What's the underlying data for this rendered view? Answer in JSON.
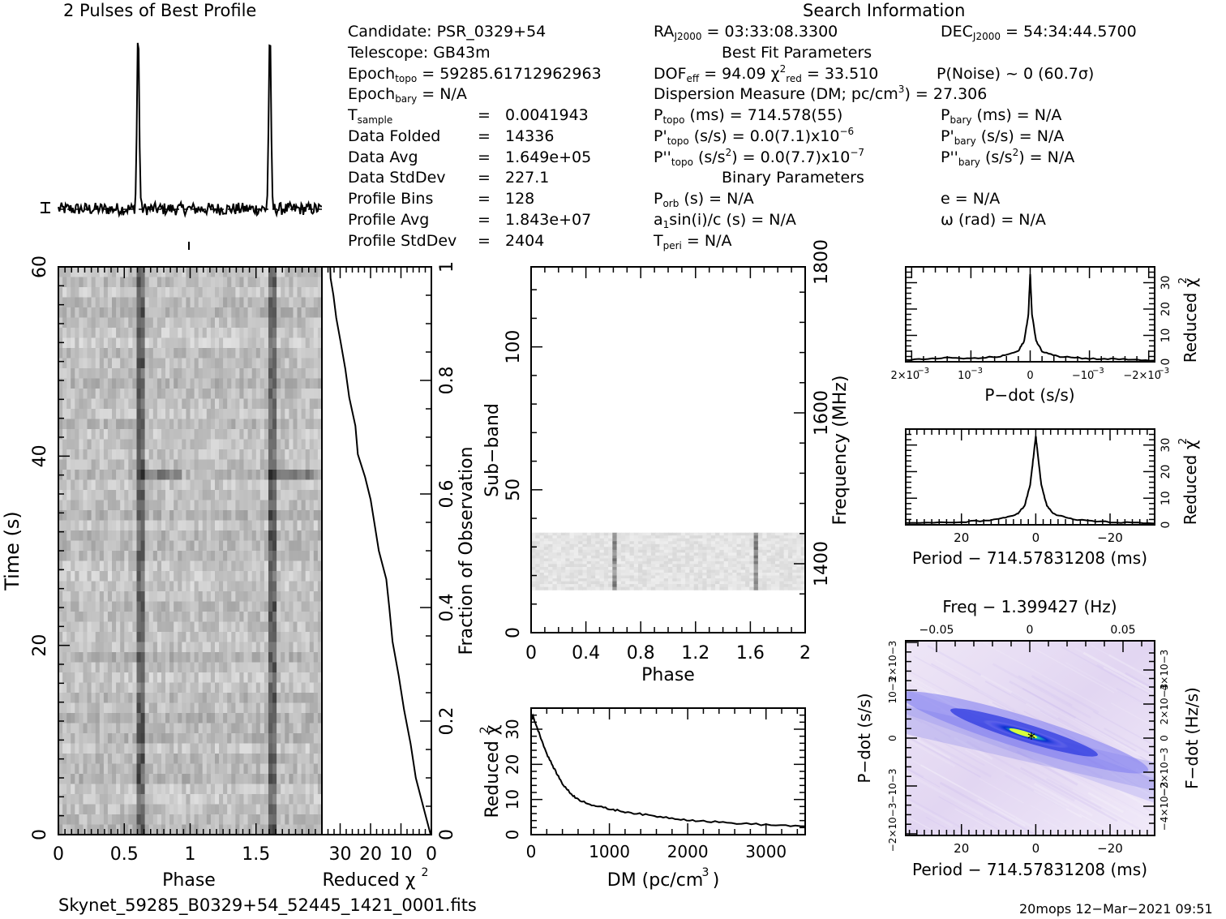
{
  "profile_title": "2 Pulses of Best Profile",
  "search_title": "Search Information",
  "info": {
    "candidate": "Candidate:  PSR_0329+54",
    "telescope": "Telescope:  GB43m",
    "epoch_topo_pre": "Epoch",
    "epoch_topo_sub": "topo",
    "epoch_topo_val": " = 59285.61712962963",
    "epoch_bary_pre": "Epoch",
    "epoch_bary_sub": "bary",
    "epoch_bary_val": " = N/A",
    "tsample_pre": "T",
    "tsample_sub": "sample",
    "tsample_val": "0.0041943",
    "data_folded": "Data Folded",
    "data_folded_val": "14336",
    "data_avg": "Data Avg",
    "data_avg_val": "1.649e+05",
    "data_std": "Data StdDev",
    "data_std_val": "227.1",
    "prof_bins": "Profile Bins",
    "prof_bins_val": "128",
    "prof_avg": "Profile Avg",
    "prof_avg_val": "1.843e+07",
    "prof_std": "Profile StdDev",
    "prof_std_val": "2404",
    "equals": "="
  },
  "fit": {
    "ra_pre": "RA",
    "ra_sub": "J2000",
    "ra_val": " = 03:33:08.3300",
    "dec_pre": "DEC",
    "dec_sub": "J2000",
    "dec_val": " = 54:34:44.5700",
    "best_fit_title": "Best Fit Parameters",
    "dof_pre": "DOF",
    "dof_sub": "eff",
    "dof_val": " = 94.09  χ",
    "chi_sup": "2",
    "chi_sub": "red",
    "chi_val": " = 33.510",
    "pnoise": "P(Noise) ~ 0   (60.7σ)",
    "dm_text": "Dispersion Measure (DM; pc/cm",
    "dm_sup": "3",
    "dm_val": ") = 27.306",
    "ptopo_pre": "P",
    "ptopo_sub": "topo",
    "ptopo_val": " (ms) =  714.578(55)",
    "pbary_pre": "P",
    "pbary_sub": "bary",
    "pbary_val": " (ms) = N/A",
    "pdtopo_pre": "P'",
    "pdtopo_sub": "topo",
    "pdtopo_val": " (s/s) = 0.0(7.1)x10",
    "pdtopo_sup": "−6",
    "pdbary_pre": "P'",
    "pdbary_sub": "bary",
    "pdbary_val": " (s/s) = N/A",
    "pddtopo_pre": "P''",
    "pddtopo_sub": "topo",
    "pddtopo_val": " (s/s",
    "pddtopo_sup1": "2",
    "pddtopo_val2": ") = 0.0(7.7)x10",
    "pddtopo_sup2": "−7",
    "pddbary_pre": "P''",
    "pddbary_sub": "bary",
    "pddbary_val": " (s/s",
    "pddbary_sup": "2",
    "pddbary_val2": ") = N/A",
    "binary_title": "Binary Parameters",
    "porb_pre": "P",
    "porb_sub": "orb",
    "porb_val": " (s) = N/A",
    "e_val": "e = N/A",
    "a1_pre": "a",
    "a1_sub": "1",
    "a1_val": "sin(i)/c (s) = N/A",
    "omega_val": "ω (rad) = N/A",
    "tperi_pre": "T",
    "tperi_sub": "peri",
    "tperi_val": " = N/A"
  },
  "footer": {
    "filename": "Skynet_59285_B0329+54_52445_1421_0001.fits",
    "stamp": "20mops 12−Mar−2021 09:51"
  },
  "chart_data": [
    {
      "type": "line",
      "name": "profile",
      "title": "2 Pulses of Best Profile",
      "xlabel": "",
      "ylabel": "",
      "x": [
        0,
        0.25,
        0.5,
        0.58,
        0.61,
        0.64,
        0.7,
        0.9,
        1.0,
        1.25,
        1.5,
        1.58,
        1.61,
        1.64,
        1.7,
        2.0
      ],
      "y": [
        0.02,
        0.03,
        0.01,
        0.05,
        1.0,
        0.05,
        0.0,
        0.02,
        0.02,
        0.03,
        0.01,
        0.05,
        1.0,
        0.05,
        0.0,
        0.02
      ]
    },
    {
      "type": "heatmap",
      "name": "time-phase",
      "xlabel": "Phase",
      "ylabel": "Time (s)",
      "xlim": [
        0,
        2
      ],
      "ylim": [
        0,
        60
      ],
      "xticks": [
        "0",
        "0.5",
        "1",
        "1.5"
      ],
      "yticks": [
        "0",
        "20",
        "40",
        "60"
      ],
      "pulse_phases": [
        0.62,
        1.62
      ]
    },
    {
      "type": "line",
      "name": "time-chi2",
      "xlabel": "Reduced χ2",
      "ylabel": "Fraction of Observation",
      "xlim": [
        36,
        0
      ],
      "ylim": [
        0,
        1
      ],
      "xticks": [
        "30",
        "20",
        "10",
        "0"
      ],
      "yticks": [
        "0",
        "0.2",
        "0.4",
        "0.6",
        "0.8",
        "1"
      ],
      "x": [
        0.3,
        2,
        5,
        7,
        9,
        11,
        13,
        14,
        15,
        17,
        19,
        20,
        22,
        24,
        25,
        27,
        28,
        30,
        31,
        32,
        33,
        33.5
      ],
      "y": [
        0,
        0.04,
        0.1,
        0.16,
        0.22,
        0.28,
        0.34,
        0.4,
        0.45,
        0.5,
        0.55,
        0.59,
        0.63,
        0.67,
        0.72,
        0.77,
        0.82,
        0.87,
        0.91,
        0.95,
        0.98,
        1.0
      ]
    },
    {
      "type": "heatmap",
      "name": "subband-phase",
      "xlabel": "Phase",
      "ylabel": "Sub−band",
      "y2label": "Frequency (MHz)",
      "xlim": [
        0,
        2
      ],
      "ylim": [
        0,
        128
      ],
      "xticks": [
        "0",
        "0.4",
        "0.8",
        "1.2",
        "1.6",
        "2"
      ],
      "yticks": [
        "0",
        "50",
        "100"
      ],
      "y2ticks": [
        "1400",
        "1600",
        "1800"
      ],
      "data_band": [
        15,
        35
      ]
    },
    {
      "type": "line",
      "name": "dm-chi2",
      "xlabel": "DM (pc/cm3)",
      "ylabel": "Reduced χ2",
      "xlim": [
        0,
        3500
      ],
      "ylim": [
        0,
        36
      ],
      "xticks": [
        "0",
        "1000",
        "2000",
        "3000"
      ],
      "yticks": [
        "0",
        "10",
        "20",
        "30"
      ],
      "x": [
        0,
        27,
        100,
        200,
        300,
        400,
        500,
        600,
        800,
        1000,
        1200,
        1500,
        1800,
        2100,
        2500,
        3000,
        3500
      ],
      "y": [
        33,
        33.5,
        29,
        23,
        18.5,
        14.5,
        11.8,
        10,
        8.3,
        7.3,
        6.5,
        5.5,
        4.7,
        4.0,
        3.4,
        2.8,
        2.4
      ]
    },
    {
      "type": "line",
      "name": "pdot-chi2",
      "xlabel": "P−dot (s/s)",
      "ylabel": "Reduced χ2",
      "xlim": [
        0.0021,
        -0.0021
      ],
      "ylim": [
        0,
        36
      ],
      "xticks": [
        "2×10−3",
        "10−3",
        "0",
        "−10−3",
        "−2×10−3"
      ],
      "yticks": [
        "0",
        "10",
        "20",
        "30"
      ],
      "x": [
        0.0021,
        0.0015,
        0.001,
        0.0005,
        0.0002,
        0.0001,
        3e-05,
        0,
        -3e-05,
        -0.0001,
        -0.0002,
        -0.0005,
        -0.001,
        -0.0015,
        -0.0021
      ],
      "y": [
        0.5,
        1.5,
        1.2,
        2.0,
        4.0,
        8.0,
        18,
        33.5,
        18,
        8.0,
        4.0,
        2.0,
        1.2,
        1.0,
        0.5
      ]
    },
    {
      "type": "line",
      "name": "period-chi2",
      "xlabel": "Period − 714.57831208 (ms)",
      "ylabel": "Reduced χ2",
      "xlim": [
        35,
        -32
      ],
      "ylim": [
        0,
        36
      ],
      "xticks": [
        "20",
        "0",
        "−20"
      ],
      "yticks": [
        "0",
        "10",
        "20",
        "30"
      ],
      "x": [
        35,
        20,
        10,
        5,
        3,
        1.5,
        0.5,
        0,
        -0.5,
        -1.5,
        -3,
        -5,
        -10,
        -20,
        -32
      ],
      "y": [
        0.5,
        1.0,
        2.0,
        4.0,
        7.0,
        15,
        27,
        33.5,
        27,
        15,
        7.0,
        4.0,
        2.0,
        1.0,
        0.5
      ]
    },
    {
      "type": "heatmap",
      "name": "period-pdot",
      "xlabel": "Period − 714.57831208 (ms)",
      "ylabel": "P−dot (s/s)",
      "x2label": "Freq − 1.399427 (Hz)",
      "y2label": "F−dot (Hz/s)",
      "xlim": [
        35,
        -32
      ],
      "ylim": [
        -0.0021,
        0.0021
      ],
      "xticks": [
        "20",
        "0",
        "−20"
      ],
      "x2ticks": [
        "−0.05",
        "0",
        "0.05"
      ],
      "yticks": [
        "2×10−3",
        "10−3",
        "0",
        "−10−3",
        "−2×10−3"
      ],
      "y2ticks": [
        "−4×10−3",
        "−2×10−3",
        "0",
        "2×10−3",
        "4×10−3"
      ],
      "peak": [
        0,
        0
      ]
    }
  ]
}
